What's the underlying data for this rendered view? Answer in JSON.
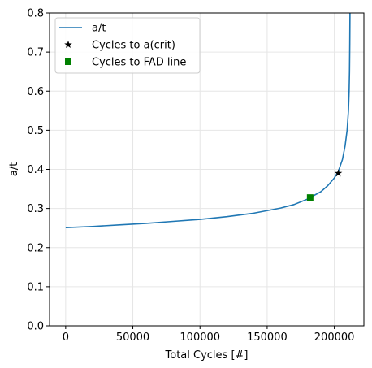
{
  "chart_data": {
    "type": "line",
    "xlabel": "Total Cycles [#]",
    "ylabel": "a/t",
    "xlim": [
      -12000,
      222000
    ],
    "ylim": [
      0,
      0.8
    ],
    "x_ticks": [
      0,
      50000,
      100000,
      150000,
      200000
    ],
    "y_ticks": [
      0.0,
      0.1,
      0.2,
      0.3,
      0.4,
      0.5,
      0.6,
      0.7,
      0.8
    ],
    "x_tick_labels": [
      "0",
      "50000",
      "100000",
      "150000",
      "200000"
    ],
    "y_tick_labels": [
      "0.0",
      "0.1",
      "0.2",
      "0.3",
      "0.4",
      "0.5",
      "0.6",
      "0.7",
      "0.8"
    ],
    "grid": true,
    "legend_position": "top-left",
    "series": [
      {
        "name": "a/t",
        "kind": "line",
        "color": "#1f77b4",
        "x": [
          0,
          20000,
          40000,
          60000,
          80000,
          100000,
          120000,
          140000,
          160000,
          170000,
          180000,
          190000,
          195000,
          200000,
          203000,
          206000,
          208000,
          209500,
          210500,
          211000,
          211300,
          211500,
          211650
        ],
        "y": [
          0.251,
          0.254,
          0.258,
          0.262,
          0.267,
          0.272,
          0.279,
          0.288,
          0.301,
          0.31,
          0.324,
          0.343,
          0.358,
          0.378,
          0.395,
          0.425,
          0.46,
          0.5,
          0.55,
          0.6,
          0.65,
          0.72,
          0.8
        ]
      },
      {
        "name": "Cycles to a(crit)",
        "kind": "marker",
        "marker": "star",
        "color": "#000000",
        "x": [
          203000
        ],
        "y": [
          0.39
        ]
      },
      {
        "name": "Cycles to FAD line",
        "kind": "marker",
        "marker": "square",
        "color": "#008000",
        "x": [
          182000
        ],
        "y": [
          0.328
        ]
      }
    ]
  }
}
